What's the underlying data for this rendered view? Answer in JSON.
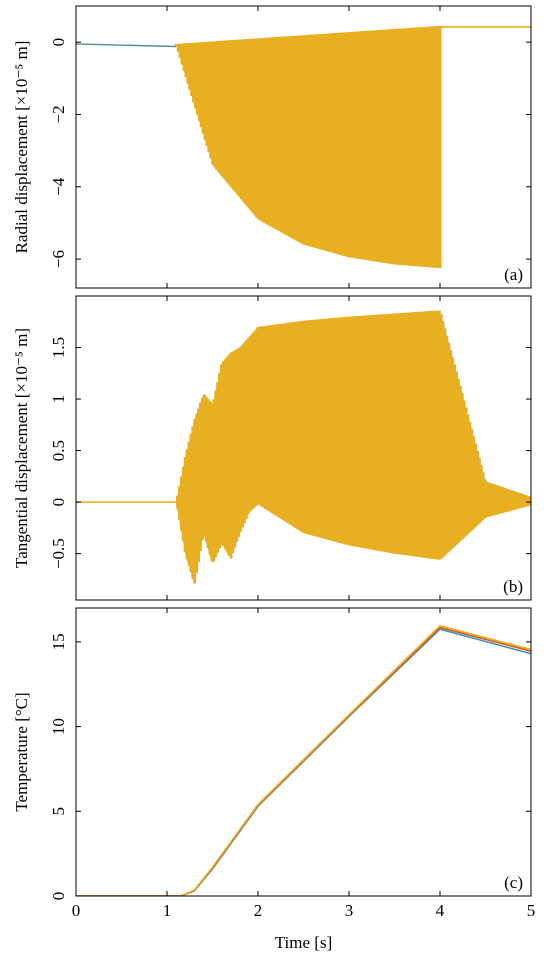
{
  "chart_data": [
    {
      "id": "a",
      "type": "line",
      "panel_label": "(a)",
      "ylabel": "Radial displacement [×10⁻⁵ m]",
      "xlim": [
        0,
        5
      ],
      "ylim": [
        -6.8,
        1.0
      ],
      "yticks": [
        0,
        -2,
        -4,
        -6
      ],
      "ytick_labels": [
        "0",
        "−2",
        "−4",
        "−6"
      ],
      "grid": false,
      "series": [
        {
          "color": "#e8b020",
          "style": "oscillation-band",
          "pre_steady": {
            "x": [
              0,
              1.1
            ],
            "y": [
              -0.05,
              -0.12
            ]
          },
          "upper_envelope": {
            "x": [
              1.1,
              4.0
            ],
            "y": [
              -0.05,
              0.45
            ]
          },
          "lower_envelope": {
            "x": [
              1.1,
              1.5,
              2.0,
              2.5,
              3.0,
              3.5,
              4.0
            ],
            "y": [
              -0.1,
              -3.4,
              -4.9,
              -5.6,
              -5.95,
              -6.15,
              -6.25
            ]
          },
          "post_steady": {
            "x": [
              4.0,
              5.0
            ],
            "y": [
              0.42,
              0.42
            ]
          }
        }
      ]
    },
    {
      "id": "b",
      "type": "line",
      "panel_label": "(b)",
      "ylabel": "Tangential displacement [×10⁻⁵ m]",
      "xlim": [
        0,
        5
      ],
      "ylim": [
        -0.95,
        2.0
      ],
      "yticks": [
        -0.5,
        0,
        0.5,
        1,
        1.5
      ],
      "ytick_labels": [
        "−0.5",
        "0",
        "0.5",
        "1",
        "1.5"
      ],
      "grid": false,
      "series": [
        {
          "color": "#e8b020",
          "style": "oscillation-band",
          "upper_envelope": {
            "x": [
              0,
              1.1,
              1.2,
              1.3,
              1.4,
              1.5,
              1.6,
              1.7,
              1.8,
              1.9,
              2.0,
              2.5,
              3.0,
              3.5,
              4.0,
              4.5,
              5.0
            ],
            "y": [
              0,
              0,
              0.45,
              0.8,
              1.05,
              0.95,
              1.35,
              1.45,
              1.5,
              1.6,
              1.7,
              1.76,
              1.8,
              1.83,
              1.86,
              0.2,
              0.05
            ]
          },
          "lower_envelope": {
            "x": [
              0,
              1.1,
              1.2,
              1.3,
              1.4,
              1.5,
              1.6,
              1.7,
              1.8,
              1.9,
              2.0,
              2.5,
              3.0,
              3.5,
              4.0,
              4.5,
              5.0
            ],
            "y": [
              0,
              0,
              -0.5,
              -0.8,
              -0.3,
              -0.6,
              -0.4,
              -0.55,
              -0.3,
              -0.1,
              -0.02,
              -0.3,
              -0.42,
              -0.5,
              -0.56,
              -0.15,
              -0.03
            ]
          },
          "inner_upper": {
            "x": [
              1.1,
              1.4,
              1.7,
              2.0,
              2.5,
              3.0,
              3.5,
              4.0,
              4.5,
              5.0
            ],
            "y": [
              0.05,
              0.5,
              0.35,
              0.05,
              0.25,
              0.4,
              0.5,
              0.56,
              0.15,
              0.03
            ]
          }
        }
      ]
    },
    {
      "id": "c",
      "type": "line",
      "panel_label": "(c)",
      "ylabel": "Temperature [°C]",
      "xlabel": "Time [s]",
      "xlim": [
        0,
        5
      ],
      "ylim": [
        0,
        17.0
      ],
      "xticks": [
        0,
        1,
        2,
        3,
        4,
        5
      ],
      "xtick_labels": [
        "0",
        "1",
        "2",
        "3",
        "4",
        "5"
      ],
      "yticks": [
        0,
        5,
        10,
        15
      ],
      "ytick_labels": [
        "0",
        "5",
        "10",
        "15"
      ],
      "grid": false,
      "series": [
        {
          "color": "#4a90b0",
          "x": [
            0,
            1.15,
            1.3,
            1.5,
            2.0,
            3.0,
            4.0,
            5.0
          ],
          "y": [
            0,
            0,
            0.3,
            1.6,
            5.3,
            10.6,
            15.75,
            14.3
          ]
        },
        {
          "color": "#d85a20",
          "x": [
            0,
            1.15,
            1.3,
            1.5,
            2.0,
            3.0,
            4.0,
            5.0
          ],
          "y": [
            0,
            0,
            0.32,
            1.65,
            5.35,
            10.65,
            15.85,
            14.45
          ]
        },
        {
          "color": "#e8b020",
          "x": [
            0,
            1.15,
            1.3,
            1.5,
            2.0,
            3.0,
            4.0,
            5.0
          ],
          "y": [
            0,
            0,
            0.35,
            1.7,
            5.4,
            10.7,
            15.95,
            14.55
          ]
        }
      ]
    }
  ]
}
